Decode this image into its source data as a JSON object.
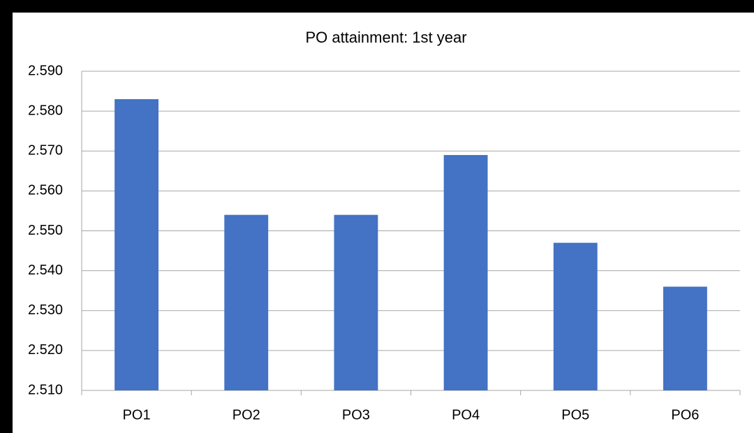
{
  "chart_data": {
    "type": "bar",
    "title": "PO attainment: 1st year",
    "categories": [
      "PO1",
      "PO2",
      "PO3",
      "PO4",
      "PO5",
      "PO6"
    ],
    "values": [
      2.583,
      2.554,
      2.554,
      2.569,
      2.547,
      2.536
    ],
    "color": "#4472c4",
    "ylim": [
      2.51,
      2.59
    ],
    "yticks": [
      {
        "value": 2.51,
        "label": "2.510"
      },
      {
        "value": 2.52,
        "label": "2.520"
      },
      {
        "value": 2.53,
        "label": "2.530"
      },
      {
        "value": 2.54,
        "label": "2.540"
      },
      {
        "value": 2.55,
        "label": "2.550"
      },
      {
        "value": 2.56,
        "label": "2.560"
      },
      {
        "value": 2.57,
        "label": "2.570"
      },
      {
        "value": 2.58,
        "label": "2.580"
      },
      {
        "value": 2.59,
        "label": "2.590"
      }
    ],
    "grid": true
  }
}
